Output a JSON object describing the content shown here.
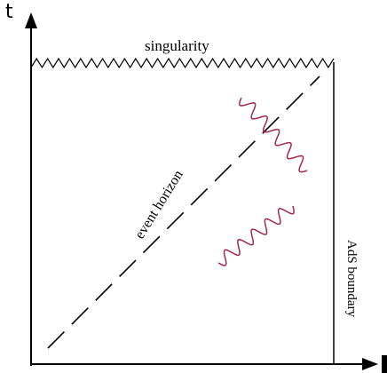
{
  "axes": {
    "vertical_label": "t",
    "horizontal_label": ""
  },
  "labels": {
    "singularity": "singularity",
    "event_horizon": "event horizon",
    "ads_boundary": "AdS boundary"
  },
  "colors": {
    "line": "#000000",
    "wave": "#a3284a"
  },
  "elements": {
    "singularity": "zigzag line",
    "event_horizon": "dashed diagonal line",
    "waves": [
      "wavy arrow upper right",
      "wavy arrow lower"
    ]
  }
}
